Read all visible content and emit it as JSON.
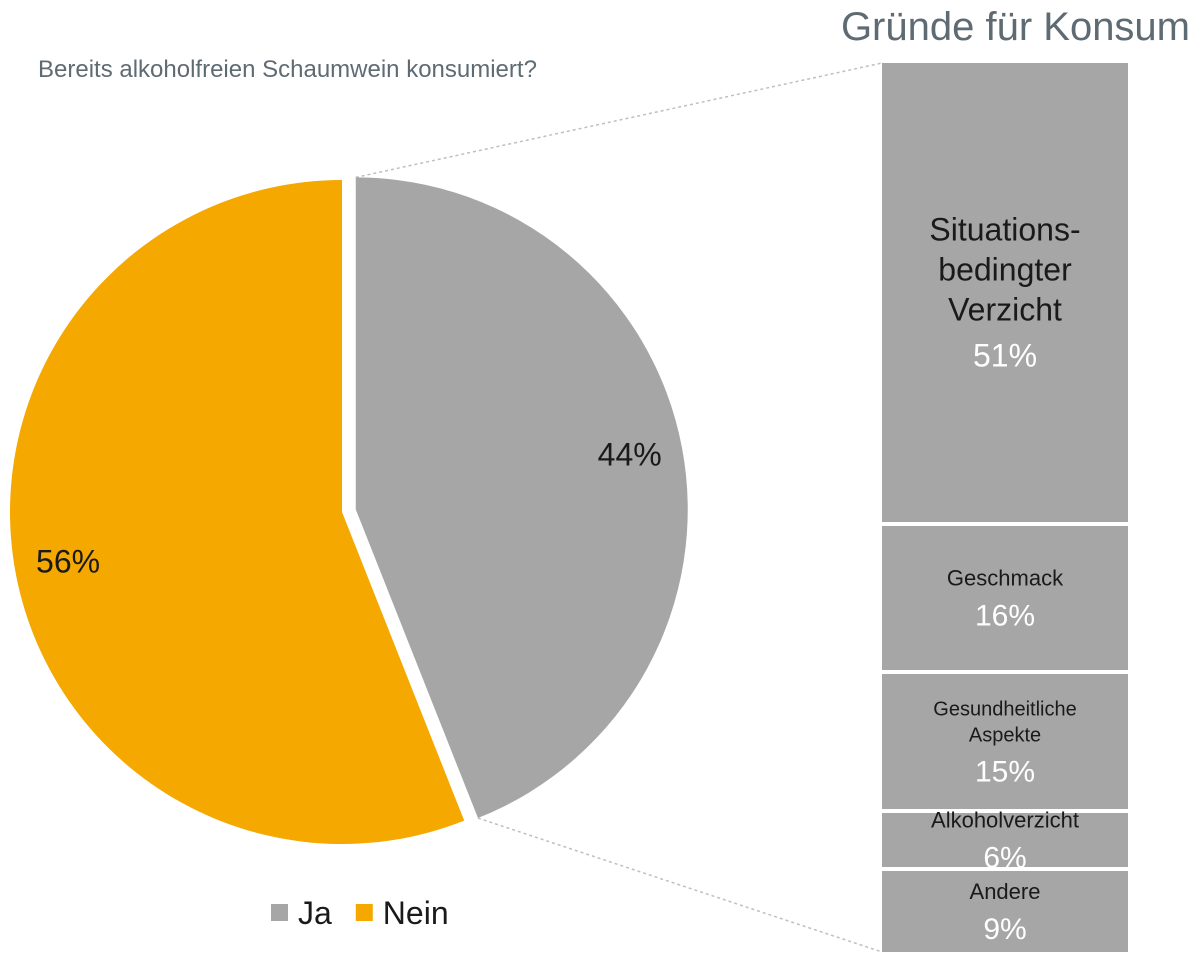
{
  "chart_data": [
    {
      "type": "pie",
      "title": "Bereits alkoholfreien Schaumwein konsumiert?",
      "slices": [
        {
          "name": "Ja",
          "value": 44,
          "label": "44%",
          "color": "#a6a6a6"
        },
        {
          "name": "Nein",
          "value": 56,
          "label": "56%",
          "color": "#f5a800"
        }
      ],
      "legend": [
        "Ja",
        "Nein"
      ],
      "legend_placement": "bottom"
    },
    {
      "type": "bar",
      "stacked": true,
      "orientation": "vertical",
      "title": "Gründe für Konsum",
      "color": "#a6a6a6",
      "categories": [
        "Situations-\nbedingter\nVerzicht",
        "Geschmack",
        "Gesundheitliche\nAspekte",
        "Alkoholverzicht",
        "Andere"
      ],
      "values": [
        51,
        16,
        15,
        6,
        9
      ],
      "value_labels": [
        "51%",
        "16%",
        "15%",
        "6%",
        "9%"
      ]
    }
  ]
}
